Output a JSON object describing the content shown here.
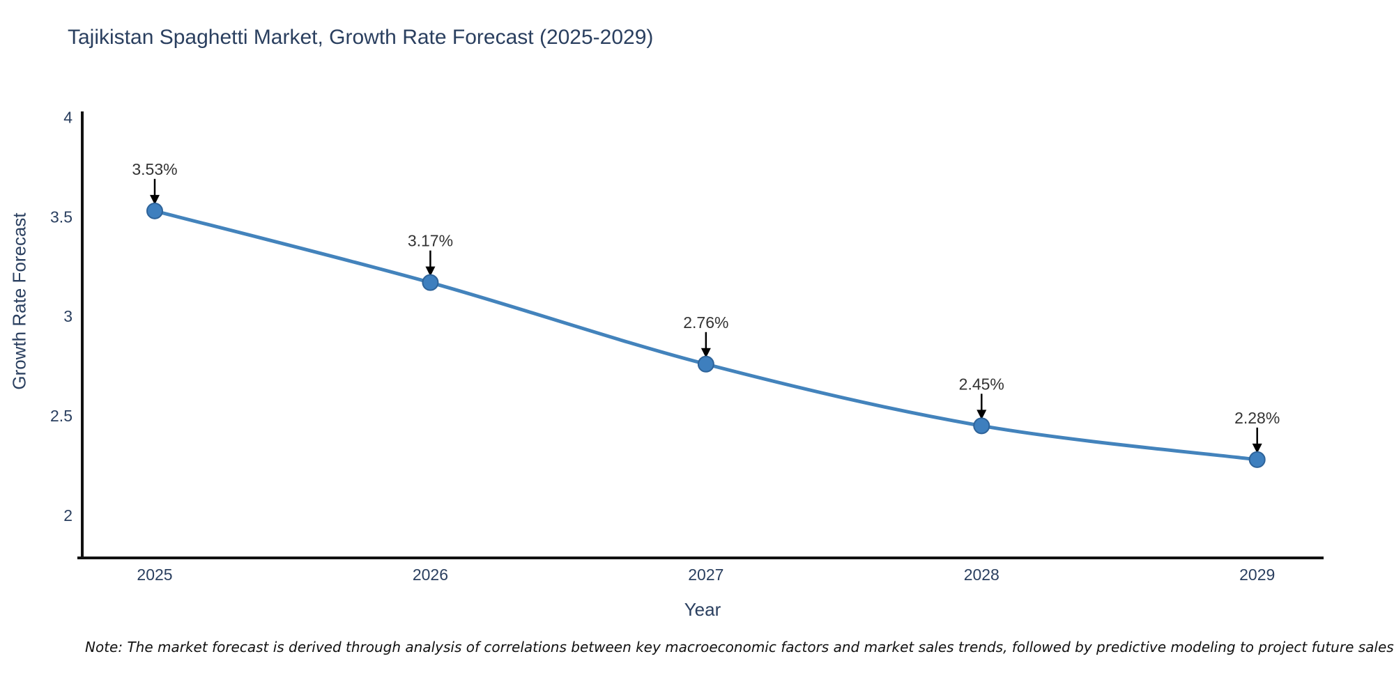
{
  "title": "Tajikistan Spaghetti Market, Growth Rate Forecast (2025-2029)",
  "footnote": "Note: The market forecast is derived through analysis of correlations between key macroeconomic factors and market sales trends, followed by predictive modeling to project future sales",
  "colors": {
    "line": "#4383bc",
    "marker_fill": "#3e7fbe",
    "marker_border": "#2e6399",
    "axis_line": "#111111",
    "arrow": "#000000",
    "title_text": "#2a3f5f",
    "axis_text": "#2a3f5f",
    "annotation_text": "#333333",
    "background": "#ffffff"
  },
  "chart_data": {
    "type": "line",
    "title": "Tajikistan Spaghetti Market, Growth Rate Forecast (2025-2029)",
    "xlabel": "Year",
    "ylabel": "Growth Rate Forecast",
    "x": [
      2025,
      2026,
      2027,
      2028,
      2029
    ],
    "y": [
      3.53,
      3.17,
      2.76,
      2.45,
      2.28
    ],
    "point_labels": [
      "3.53%",
      "3.17%",
      "2.76%",
      "2.45%",
      "2.28%"
    ],
    "xtick_labels": [
      "2025",
      "2026",
      "2027",
      "2028",
      "2029"
    ],
    "ytick_values": [
      4,
      3.5,
      3,
      2.5,
      2
    ],
    "ytick_labels": [
      "4",
      "3.5",
      "3",
      "2.5",
      "2"
    ],
    "xlim": [
      2024.737,
      2029.241
    ],
    "ylim": [
      1.786,
      4.03
    ],
    "grid": false,
    "legend": "none",
    "line_shape": "spline",
    "markers": true,
    "annotation_style": "value label with downward arrow above each point"
  }
}
